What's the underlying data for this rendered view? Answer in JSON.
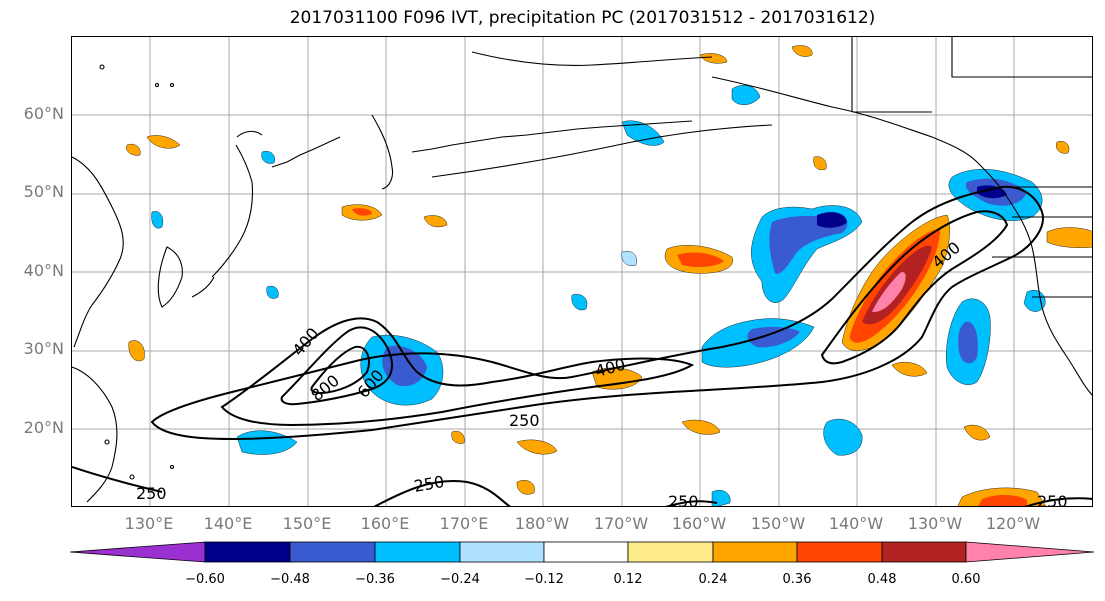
{
  "title": "2017031100 F096 IVT, precipitation PC (2017031512 - 2017031612)",
  "latitude_labels": [
    "60°N",
    "50°N",
    "40°N",
    "30°N",
    "20°N"
  ],
  "longitude_labels": [
    "130°E",
    "140°E",
    "150°E",
    "160°E",
    "170°E",
    "180°W",
    "170°W",
    "160°W",
    "150°W",
    "140°W",
    "130°W",
    "120°W"
  ],
  "ivt_contour_labels": [
    "400",
    "800",
    "600",
    "400",
    "400",
    "250",
    "250",
    "250",
    "250",
    "250"
  ],
  "colorbar": {
    "ticks": [
      "−0.60",
      "−0.48",
      "−0.36",
      "−0.24",
      "−0.12",
      "0.12",
      "0.24",
      "0.36",
      "0.48",
      "0.60"
    ],
    "colors": [
      "#9b30d0",
      "#00008b",
      "#3a5bd0",
      "#00bfff",
      "#b0e2ff",
      "#ffffff",
      "#ffec8b",
      "#ffa500",
      "#ff4500",
      "#b22222",
      "#ff82ab"
    ]
  }
}
